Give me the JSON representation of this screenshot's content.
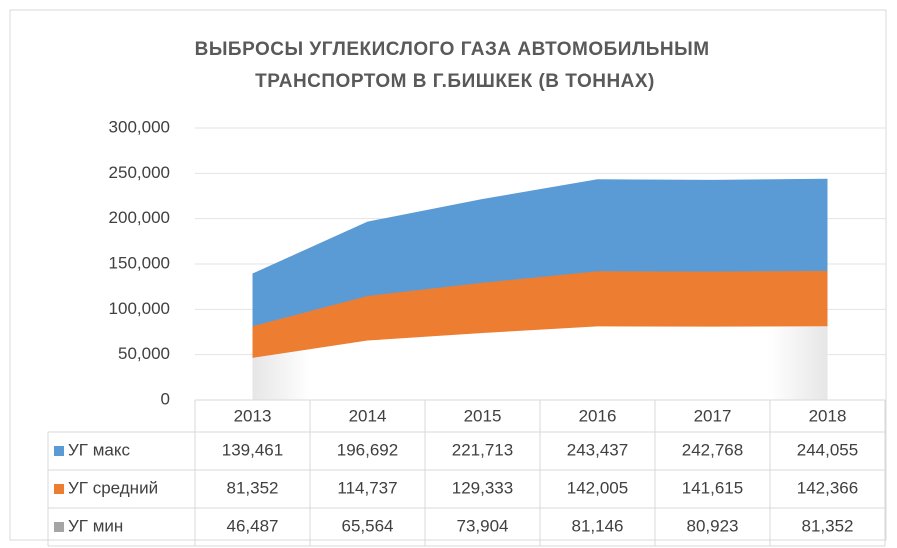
{
  "chart_data": {
    "type": "area",
    "title": "ВЫБРОСЫ УГЛЕКИСЛОГО ГАЗА АВТОМОБИЛЬНЫМ ТРАНСПОРТОМ В Г.БИШКЕК (В ТОННАХ)",
    "categories": [
      "2013",
      "2014",
      "2015",
      "2016",
      "2017",
      "2018"
    ],
    "series": [
      {
        "name": "УГ макс",
        "color": "#5b9bd5",
        "values": [
          139461,
          196692,
          221713,
          243437,
          242768,
          244055
        ],
        "value_labels": [
          "139,461",
          "196,692",
          "221,713",
          "243,437",
          "242,768",
          "244,055"
        ]
      },
      {
        "name": "УГ средний",
        "color": "#ed7d31",
        "values": [
          81352,
          114737,
          129333,
          142005,
          141615,
          142366
        ],
        "value_labels": [
          "81,352",
          "114,737",
          "129,333",
          "142,005",
          "141,615",
          "142,366"
        ]
      },
      {
        "name": "УГ мин",
        "color": "#a5a5a5",
        "values": [
          46487,
          65564,
          73904,
          81146,
          80923,
          81352
        ],
        "value_labels": [
          "46,487",
          "65,564",
          "73,904",
          "81,146",
          "80,923",
          "81,352"
        ]
      }
    ],
    "ylim": [
      0,
      300000
    ],
    "yticks": [
      0,
      {
        "value": 50000,
        "label": "50,000"
      },
      {
        "value": 100000,
        "label": "100,000"
      },
      {
        "value": 150000,
        "label": "150,000"
      },
      {
        "value": 200000,
        "label": "200,000"
      },
      {
        "value": 250000,
        "label": "250,000"
      },
      {
        "value": 300000,
        "label": "300,000"
      }
    ],
    "grid": true,
    "data_table": true
  }
}
